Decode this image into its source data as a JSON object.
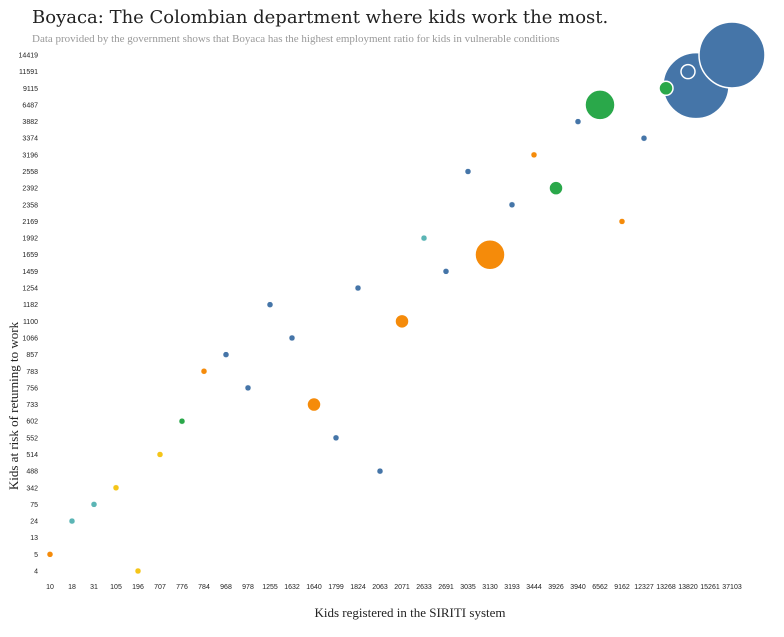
{
  "title": "Boyaca: The Colombian department where kids work the most.",
  "subtitle": "Data provided by the government shows that Boyaca has the highest employment ratio for kids in vulnerable conditions",
  "chart_data": {
    "type": "scatter",
    "title": "Boyaca: The Colombian department where kids work the most.",
    "subtitle": "Data provided by the government shows that Boyaca has the highest employment ratio for kids in vulnerable conditions",
    "xlabel": "Kids registered in the SIRITI system",
    "ylabel": "Kids at risk of returning to work",
    "x_categories": [
      "10",
      "18",
      "31",
      "105",
      "196",
      "707",
      "776",
      "784",
      "968",
      "978",
      "1255",
      "1632",
      "1640",
      "1799",
      "1824",
      "2063",
      "2071",
      "2633",
      "2691",
      "3035",
      "3130",
      "3193",
      "3444",
      "3926",
      "3940",
      "6562",
      "9162",
      "12327",
      "13268",
      "13820",
      "15261",
      "37103"
    ],
    "y_categories": [
      "4",
      "5",
      "13",
      "24",
      "75",
      "342",
      "488",
      "514",
      "552",
      "602",
      "733",
      "756",
      "783",
      "857",
      "1066",
      "1100",
      "1182",
      "1254",
      "1459",
      "1659",
      "1992",
      "2169",
      "2358",
      "2392",
      "2558",
      "3196",
      "3374",
      "3882",
      "6487",
      "9115",
      "11591",
      "14419"
    ],
    "grid": false,
    "points": [
      {
        "x": "10",
        "y": "5",
        "color": "#f58b0a",
        "size": "small"
      },
      {
        "x": "18",
        "y": "24",
        "color": "#5bb5b5",
        "size": "small"
      },
      {
        "x": "31",
        "y": "75",
        "color": "#5bb5b5",
        "size": "small"
      },
      {
        "x": "105",
        "y": "342",
        "color": "#f5c518",
        "size": "small"
      },
      {
        "x": "196",
        "y": "4",
        "color": "#f5c518",
        "size": "small"
      },
      {
        "x": "707",
        "y": "514",
        "color": "#f5c518",
        "size": "small"
      },
      {
        "x": "776",
        "y": "602",
        "color": "#2aa84a",
        "size": "small"
      },
      {
        "x": "784",
        "y": "783",
        "color": "#f58b0a",
        "size": "small"
      },
      {
        "x": "968",
        "y": "857",
        "color": "#4575a8",
        "size": "small"
      },
      {
        "x": "978",
        "y": "756",
        "color": "#4575a8",
        "size": "small"
      },
      {
        "x": "1255",
        "y": "1182",
        "color": "#4575a8",
        "size": "small"
      },
      {
        "x": "1632",
        "y": "1066",
        "color": "#4575a8",
        "size": "small"
      },
      {
        "x": "1640",
        "y": "733",
        "color": "#f58b0a",
        "size": "medium"
      },
      {
        "x": "1799",
        "y": "552",
        "color": "#4575a8",
        "size": "small"
      },
      {
        "x": "1824",
        "y": "1254",
        "color": "#4575a8",
        "size": "small"
      },
      {
        "x": "2063",
        "y": "488",
        "color": "#4575a8",
        "size": "small"
      },
      {
        "x": "2071",
        "y": "1100",
        "color": "#f58b0a",
        "size": "medium"
      },
      {
        "x": "2633",
        "y": "1992",
        "color": "#5bb5b5",
        "size": "small"
      },
      {
        "x": "2691",
        "y": "1459",
        "color": "#4575a8",
        "size": "small"
      },
      {
        "x": "3035",
        "y": "2558",
        "color": "#4575a8",
        "size": "small"
      },
      {
        "x": "3130",
        "y": "1659",
        "color": "#f58b0a",
        "size": "large"
      },
      {
        "x": "3193",
        "y": "2358",
        "color": "#4575a8",
        "size": "small"
      },
      {
        "x": "3444",
        "y": "3196",
        "color": "#f58b0a",
        "size": "small"
      },
      {
        "x": "3926",
        "y": "2392",
        "color": "#2aa84a",
        "size": "medium"
      },
      {
        "x": "3940",
        "y": "3882",
        "color": "#4575a8",
        "size": "small"
      },
      {
        "x": "6562",
        "y": "6487",
        "color": "#2aa84a",
        "size": "large"
      },
      {
        "x": "9162",
        "y": "2169",
        "color": "#f58b0a",
        "size": "small"
      },
      {
        "x": "12327",
        "y": "3374",
        "color": "#4575a8",
        "size": "small"
      },
      {
        "x": "13268",
        "y": "9115",
        "color": "#2aa84a",
        "size": "medium"
      },
      {
        "x": "13820",
        "y": "11591",
        "color": "#4575a8",
        "size": "medium"
      },
      {
        "x": "15261",
        "y": "11591",
        "color": "#4575a8",
        "size": "huge"
      },
      {
        "x": "37103",
        "y": "14419",
        "color": "#4575a8",
        "size": "huge"
      }
    ]
  }
}
